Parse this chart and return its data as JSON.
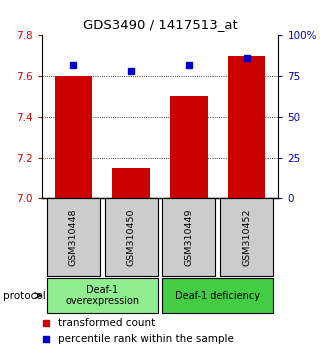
{
  "title": "GDS3490 / 1417513_at",
  "categories": [
    "GSM310448",
    "GSM310450",
    "GSM310449",
    "GSM310452"
  ],
  "bar_values": [
    7.6,
    7.15,
    7.5,
    7.7
  ],
  "percentile_values": [
    82,
    78,
    82,
    86
  ],
  "ylim_left": [
    7.0,
    7.8
  ],
  "ylim_right": [
    0,
    100
  ],
  "yticks_left": [
    7.0,
    7.2,
    7.4,
    7.6,
    7.8
  ],
  "yticks_right": [
    0,
    25,
    50,
    75,
    100
  ],
  "bar_color": "#cc0000",
  "percentile_color": "#0000cc",
  "protocol_groups": [
    {
      "label": "Deaf-1\noverexpression",
      "indices": [
        0,
        1
      ],
      "color": "#90ee90"
    },
    {
      "label": "Deaf-1 deficiency",
      "indices": [
        2,
        3
      ],
      "color": "#44cc44"
    }
  ],
  "left_color": "#cc0000",
  "right_color": "#0000cc",
  "grid_color": "#333333",
  "label_bg": "#cccccc",
  "fig_width": 3.2,
  "fig_height": 3.54,
  "dpi": 100
}
